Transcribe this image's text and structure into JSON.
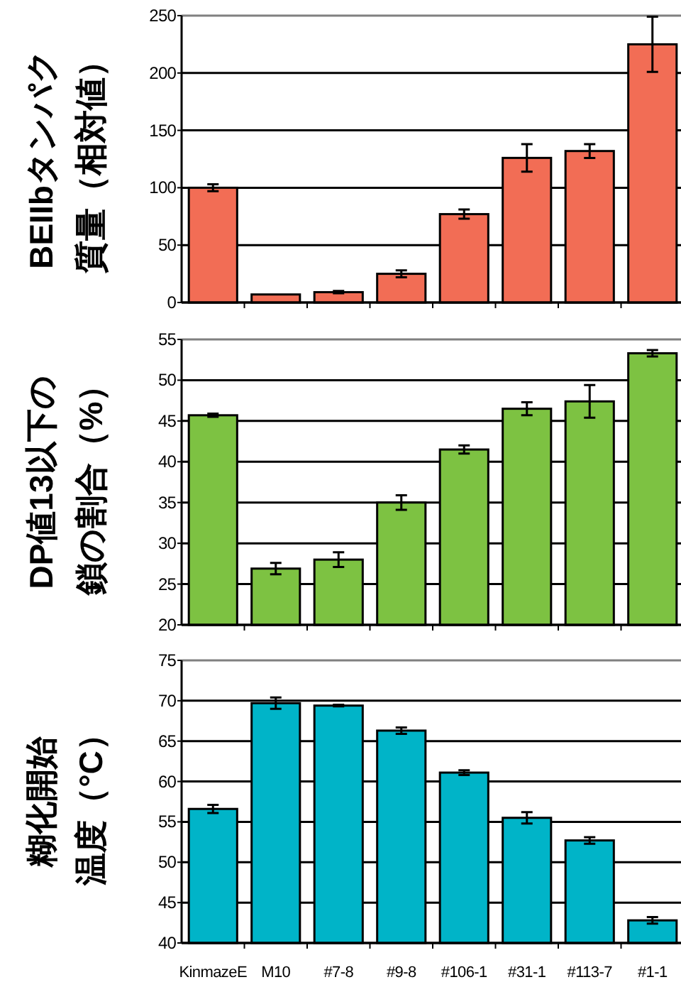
{
  "chart_data": [
    {
      "type": "bar",
      "categories": [
        null,
        null,
        null,
        null,
        null,
        null,
        null,
        null
      ],
      "values": [
        100,
        7,
        9,
        25,
        77,
        126,
        132,
        225
      ],
      "errors": [
        3,
        null,
        1,
        3,
        4,
        12,
        6,
        24
      ],
      "color": "#f26d55",
      "ylabel": "BEIIbタンパク質量（相対値）",
      "ylim": [
        0,
        250
      ],
      "yticks": [
        0,
        50,
        100,
        150,
        200,
        250
      ],
      "grid": "y",
      "tick_labels": "y"
    },
    {
      "type": "bar",
      "categories": [
        null,
        null,
        null,
        null,
        null,
        null,
        null,
        null
      ],
      "values": [
        45.7,
        26.9,
        28.0,
        35.0,
        41.5,
        46.5,
        47.4,
        53.3
      ],
      "errors": [
        0.2,
        0.7,
        0.9,
        0.9,
        0.5,
        0.8,
        2.0,
        0.4
      ],
      "color": "#7dc242",
      "ylabel": "DP値13以下の鎖の割合（%）",
      "ylim": [
        20,
        55
      ],
      "yticks": [
        20,
        25,
        30,
        35,
        40,
        45,
        50,
        55
      ],
      "grid": "y",
      "tick_labels": "y"
    },
    {
      "type": "bar",
      "categories": [
        "KinmazeE",
        "M10",
        "#7-8",
        "#9-8",
        "#106-1",
        "#31-1",
        "#113-7",
        "#1-1"
      ],
      "values": [
        56.6,
        69.7,
        69.4,
        66.3,
        61.1,
        55.5,
        52.7,
        42.8
      ],
      "errors": [
        0.5,
        0.7,
        0.1,
        0.4,
        0.3,
        0.7,
        0.4,
        0.4
      ],
      "color": "#00b4c8",
      "ylabel": "糊化開始温度（°C）",
      "ylim": [
        40,
        75
      ],
      "yticks": [
        40,
        45,
        50,
        55,
        60,
        65,
        70,
        75
      ],
      "grid": "y"
    }
  ]
}
